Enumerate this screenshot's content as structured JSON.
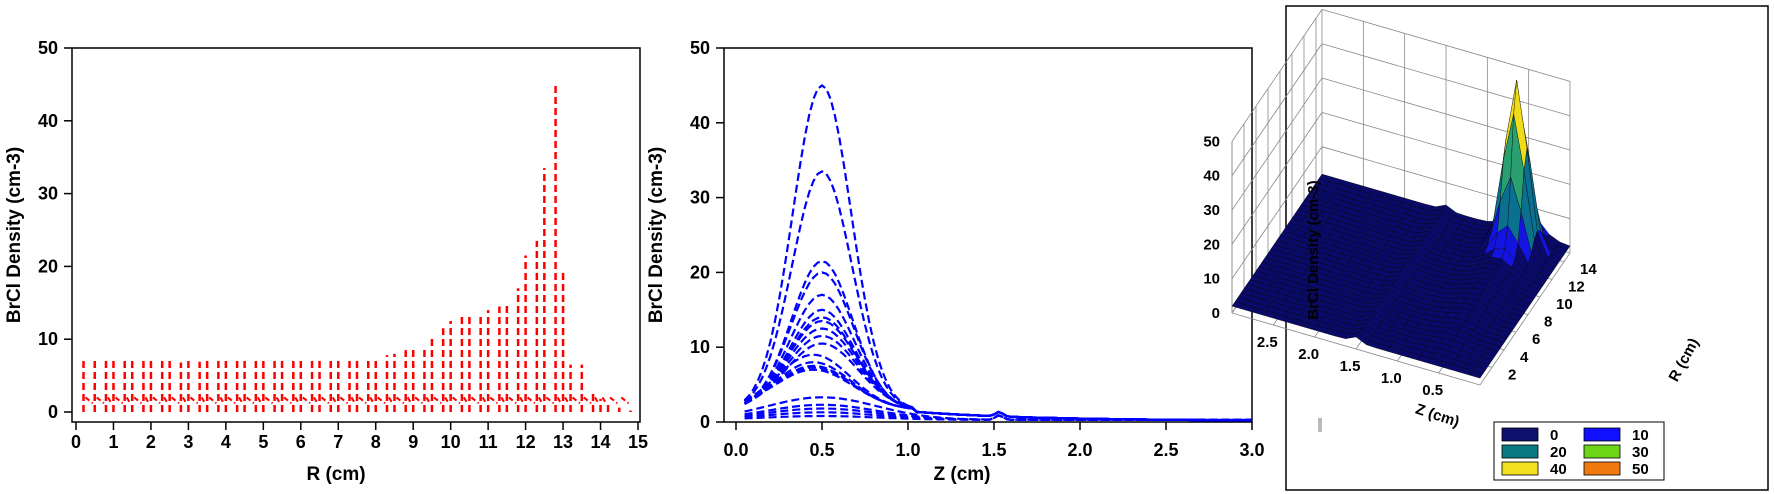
{
  "chart_data": [
    {
      "type": "line",
      "style": "vertical dashed profiles",
      "color": "#ff0000",
      "line_style": "dashed",
      "xlabel": "R (cm)",
      "ylabel": "BrCl Density (cm-3)",
      "xlim": [
        0,
        15
      ],
      "ylim": [
        0,
        50
      ],
      "xticks": [
        "0",
        "1",
        "2",
        "3",
        "4",
        "5",
        "6",
        "7",
        "8",
        "9",
        "10",
        "11",
        "12",
        "13",
        "14",
        "15"
      ],
      "yticks": [
        "0",
        "10",
        "20",
        "30",
        "40",
        "50"
      ],
      "series": [
        {
          "x": [
            0.2,
            0.5,
            0.8,
            1.0,
            1.3,
            1.5,
            1.8,
            2.0,
            2.3,
            2.5,
            2.8,
            3.0,
            3.3,
            3.5,
            3.8,
            4.0,
            4.3,
            4.5,
            4.8,
            5.0,
            5.3,
            5.5,
            5.8,
            6.0,
            6.3,
            6.5,
            6.8,
            7.0,
            7.3,
            7.5,
            7.8,
            8.0,
            8.3,
            8.5,
            8.8,
            9.0,
            9.3,
            9.5,
            9.8,
            10.0,
            10.3,
            10.5,
            10.8,
            11.0,
            11.3,
            11.5,
            11.8,
            12.0,
            12.3,
            12.5,
            12.8,
            13.0,
            13.2,
            13.5,
            13.8,
            14.0,
            14.2,
            14.5,
            14.8
          ],
          "peak": [
            7.3,
            7.3,
            7.2,
            7.3,
            7.2,
            7.2,
            7.0,
            7.2,
            7.0,
            7.0,
            6.8,
            7.0,
            6.9,
            7.0,
            7.2,
            7.2,
            7.3,
            7.3,
            7.4,
            7.3,
            7.4,
            7.5,
            7.3,
            7.3,
            7.0,
            7.1,
            7.0,
            7.2,
            7.2,
            7.4,
            7.4,
            7.5,
            7.8,
            8.0,
            8.5,
            8.8,
            9.0,
            10.5,
            11.5,
            12.5,
            13.2,
            13.5,
            13.5,
            14.0,
            14.5,
            15.0,
            17.0,
            21.5,
            23.5,
            33.5,
            45.0,
            19.5,
            6.5,
            6.5,
            3.0,
            1.8,
            1.0,
            0.6,
            0.2
          ],
          "ridge_low": 1.5
        }
      ]
    },
    {
      "type": "line",
      "color": "#0000ff",
      "line_style": "dashed",
      "xlabel": "Z (cm)",
      "ylabel": "BrCl Density (cm-3)",
      "xlim": [
        0,
        3.0
      ],
      "ylim": [
        0,
        50
      ],
      "xticks": [
        "0.0",
        "0.5",
        "1.0",
        "1.5",
        "2.0",
        "2.5",
        "3.0"
      ],
      "yticks": [
        "0",
        "10",
        "20",
        "30",
        "40",
        "50"
      ],
      "x": [
        0.05,
        0.15,
        0.25,
        0.35,
        0.45,
        0.5,
        0.55,
        0.65,
        0.75,
        0.85,
        0.95,
        1.05,
        1.15,
        1.3,
        1.45,
        1.5,
        1.55,
        1.7,
        2.0,
        2.5,
        3.0
      ],
      "peaks": [
        45.0,
        33.5,
        21.5,
        20.0,
        17.0,
        15.0,
        14.0,
        13.5,
        12.5,
        11.5,
        10.5,
        9.0,
        8.0,
        7.5,
        7.3,
        7.0,
        3.0,
        2.0,
        1.5,
        1.0,
        0.5
      ],
      "series": []
    },
    {
      "type": "surface",
      "colormap": "dark blue → blue → teal → green → yellow → orange → red",
      "xlabel": "Z (cm)",
      "ylabel": "R (cm)",
      "zlabel": "BrCl Density (cm-3)",
      "xticks": [
        "2.5",
        "2.0",
        "1.5",
        "1.0",
        "0.5"
      ],
      "yticks": [
        "2",
        "4",
        "6",
        "8",
        "10",
        "12",
        "14"
      ],
      "zticks": [
        "0",
        "10",
        "20",
        "30",
        "40",
        "50"
      ],
      "zlim": [
        0,
        50
      ],
      "peak": {
        "R": 13.0,
        "Z": 0.5,
        "value": 45.0
      },
      "legend": [
        {
          "label": "0",
          "color": "#101070"
        },
        {
          "label": "10",
          "color": "#1010ff"
        },
        {
          "label": "20",
          "color": "#0b7a80"
        },
        {
          "label": "30",
          "color": "#6ed616"
        },
        {
          "label": "40",
          "color": "#f2e020"
        },
        {
          "label": "50",
          "color": "#f07a10"
        }
      ]
    }
  ]
}
